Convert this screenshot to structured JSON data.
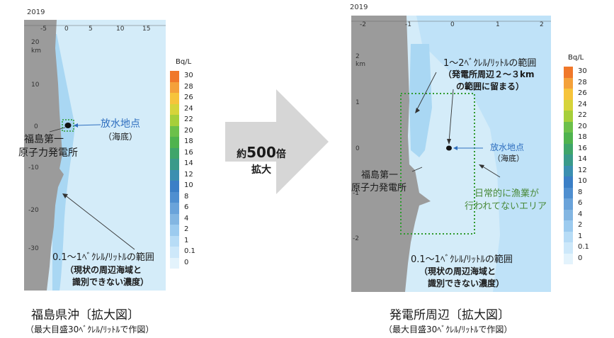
{
  "colors": {
    "land": "#9b9b9b",
    "sea_base": "#cfe9f8",
    "sea_band": "#a9d7f3",
    "sea_band_dark": "#8fc7ee",
    "marker": "#111111",
    "dotted_box": "#2f9a2f",
    "arrow_fill": "#d6d6d6",
    "text_blue": "#2f6fbf",
    "text_green": "#4a8a3a"
  },
  "colorbar": {
    "unit": "Bq/L",
    "levels": [
      "30",
      "28",
      "26",
      "24",
      "22",
      "20",
      "18",
      "16",
      "14",
      "12",
      "10",
      "8",
      "6",
      "4",
      "2",
      "1",
      "0.1",
      "0"
    ],
    "colors": [
      "#f0782a",
      "#f4a13a",
      "#f6c43b",
      "#d6d43a",
      "#a6cf3a",
      "#6cc04a",
      "#4fb34e",
      "#3fa56a",
      "#3a9a8a",
      "#3b8fb0",
      "#3b7fc6",
      "#4f8fd0",
      "#6aa3da",
      "#83b6e2",
      "#9ccbef",
      "#b7dcf6",
      "#cde8fa",
      "#e3f3fc"
    ]
  },
  "left_panel": {
    "year": "2019",
    "x_ticks": [
      "-5",
      "0",
      "5",
      "10",
      "15"
    ],
    "y_ticks": [
      "20",
      "10",
      "0",
      "-10",
      "-20",
      "-30"
    ],
    "y_unit": "km",
    "discharge_label": "放水地点",
    "discharge_sub": "（海底）",
    "plant_label_1": "福島第一",
    "plant_label_2": "原子力発電所",
    "range_label": "0.1～1ﾍﾞｸﾚﾙ/ﾘｯﾄﾙの範囲",
    "range_note_1": "（現状の周辺海域と",
    "range_note_2": "識別できない濃度）",
    "caption": "福島県沖〔拡大図〕",
    "caption_sub": "（最大目盛30ﾍﾞｸﾚﾙ/ﾘｯﾄﾙで作図）"
  },
  "right_panel": {
    "year": "2019",
    "x_ticks": [
      "-2",
      "-1",
      "0",
      "1",
      "2"
    ],
    "y_ticks": [
      "2",
      "1",
      "0",
      "-1",
      "-2"
    ],
    "y_unit": "km",
    "range_high_label": "1～2ﾍﾞｸﾚﾙ/ﾘｯﾄﾙの範囲",
    "range_high_note_1": "（発電所周辺２～３km",
    "range_high_note_2": "の範囲に留まる）",
    "discharge_label": "放水地点",
    "discharge_sub": "（海底）",
    "plant_label_1": "福島第一",
    "plant_label_2": "原子力発電所",
    "fishing_label_1": "日常的に漁業が",
    "fishing_label_2": "行われてないエリア",
    "range_label": "0.1～1ﾍﾞｸﾚﾙ/ﾘｯﾄﾙの範囲",
    "range_note_1": "（現状の周辺海域と",
    "range_note_2": "識別できない濃度）",
    "caption": "発電所周辺〔拡大図〕",
    "caption_sub": "（最大目盛30ﾍﾞｸﾚﾙ/ﾘｯﾄﾙで作図）"
  },
  "center_arrow": {
    "line1_prefix": "約",
    "line1_number": "500",
    "line1_suffix": "倍",
    "line2": "拡大"
  }
}
